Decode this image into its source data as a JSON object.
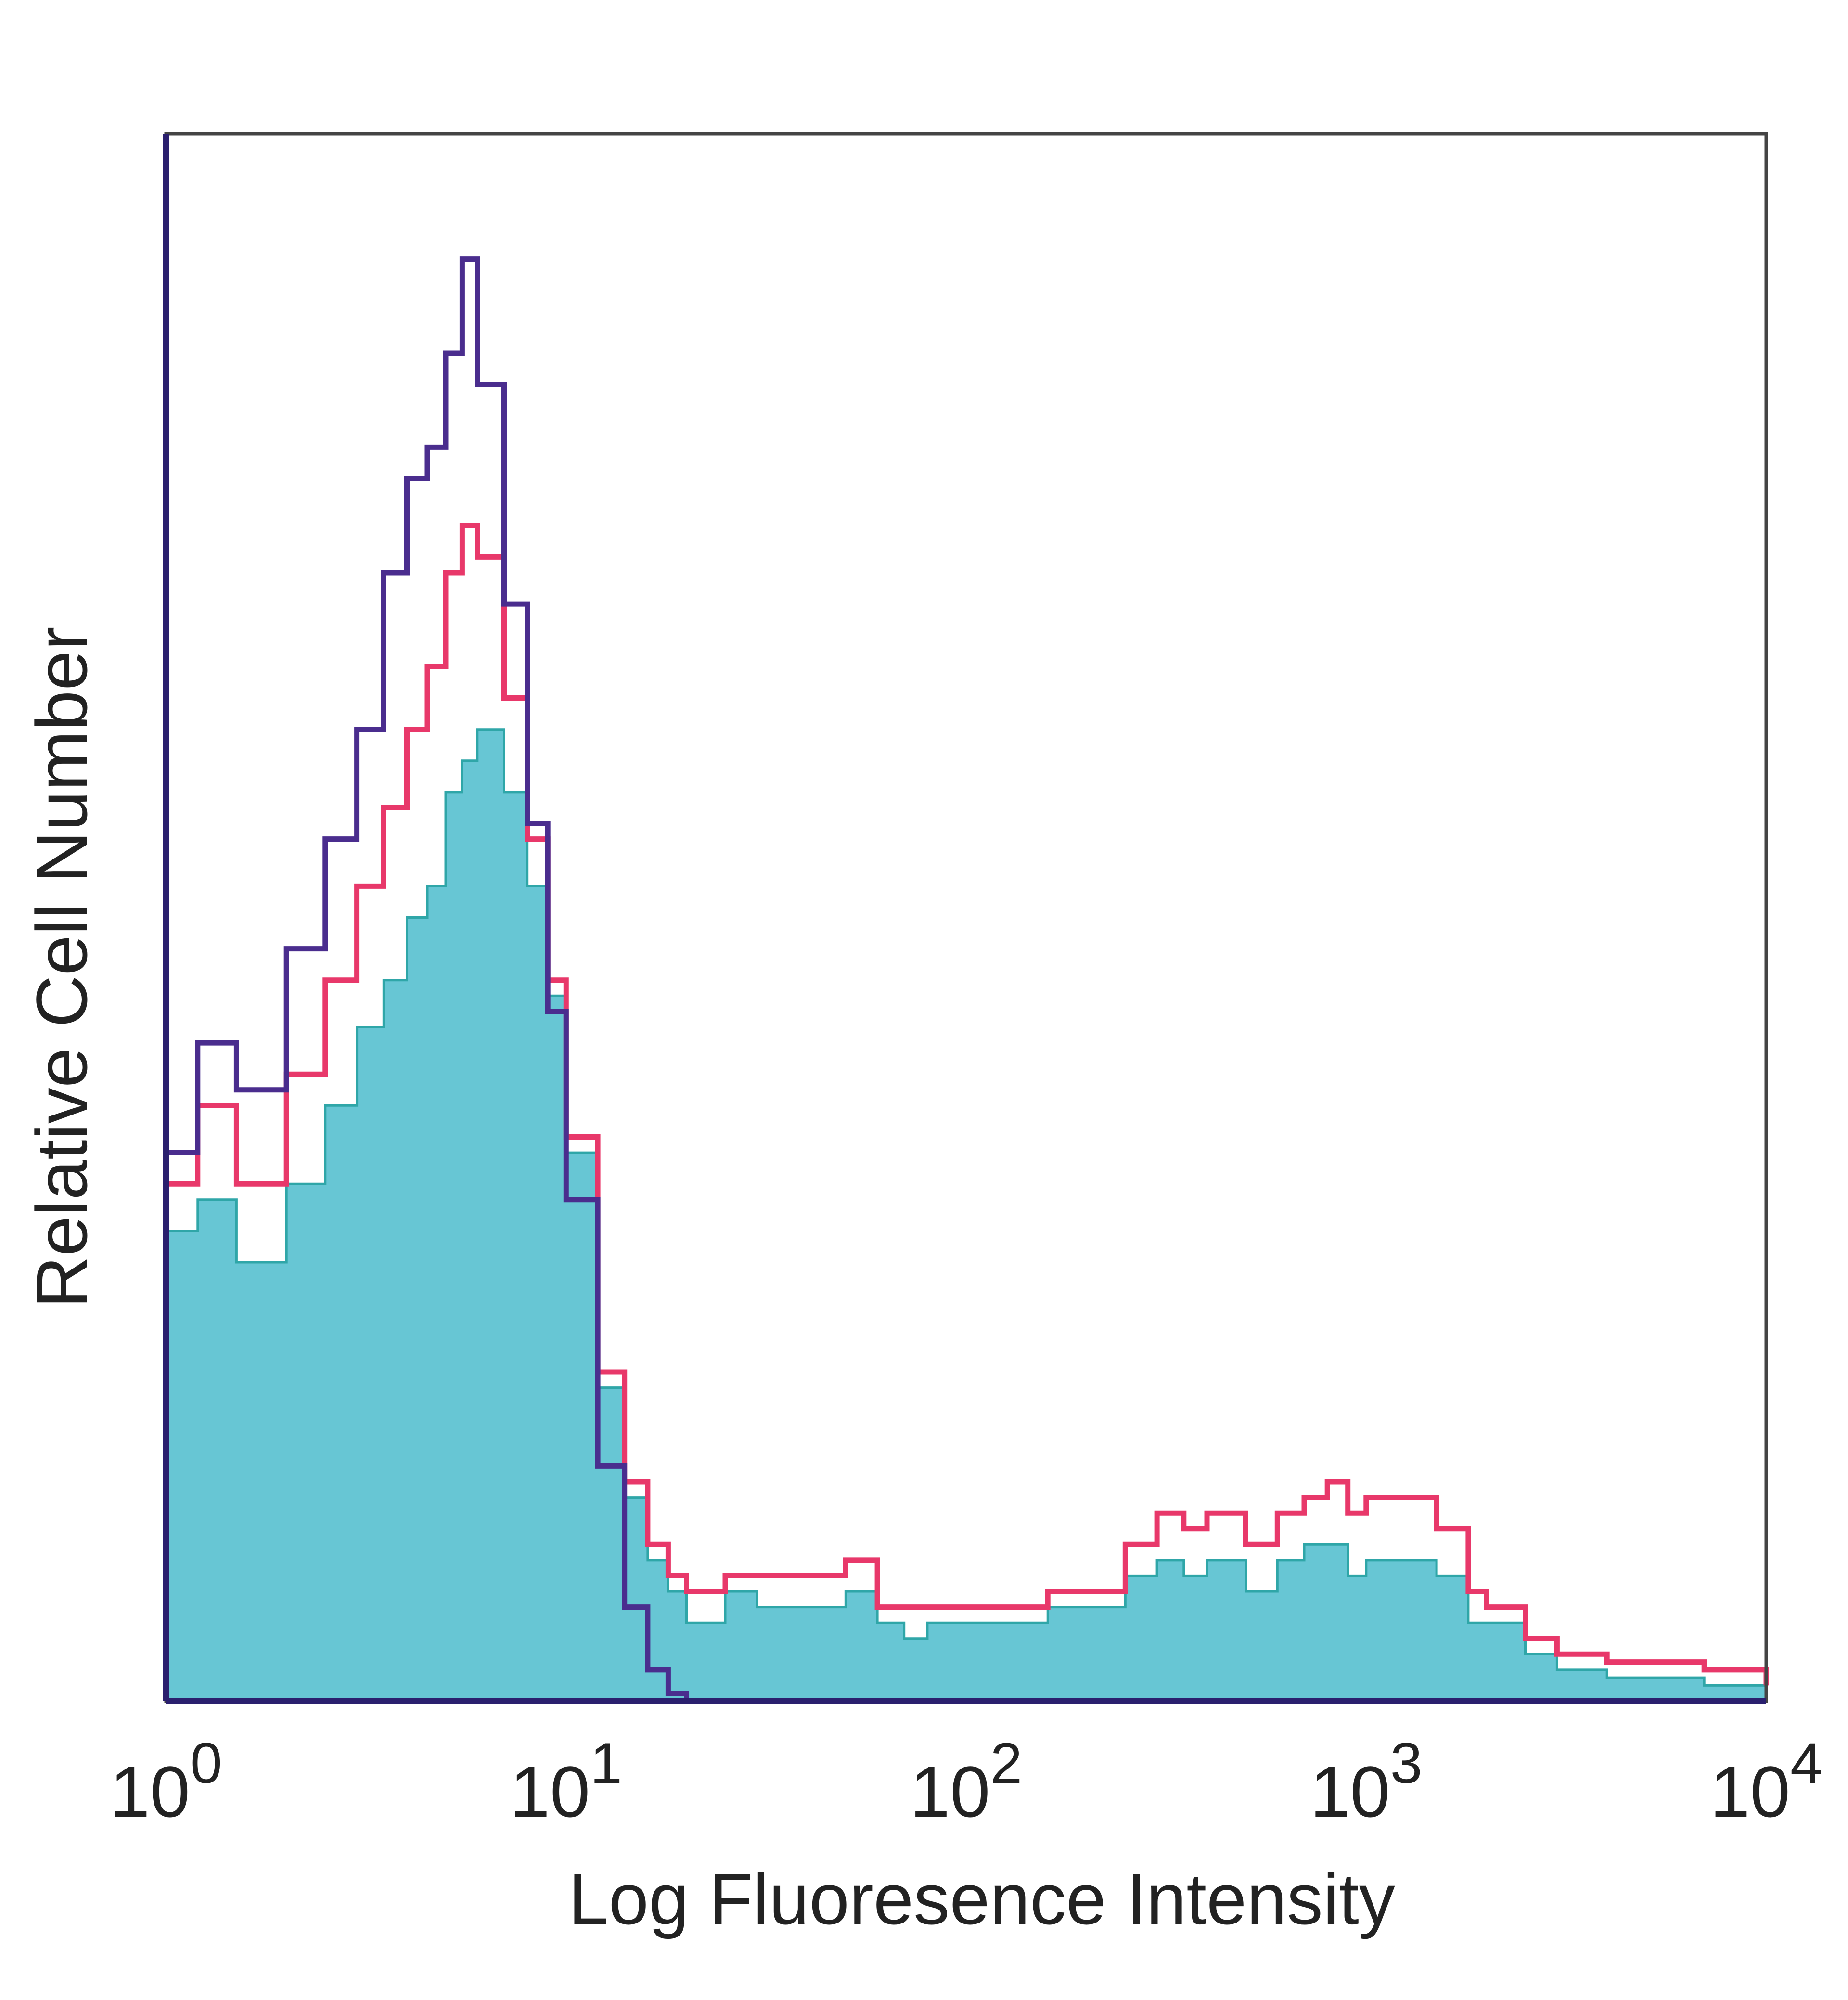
{
  "chart_data": {
    "type": "area",
    "title": "",
    "xlabel": "Log Fluoresence Intensity",
    "ylabel": "Relative Cell Number",
    "x_scale": "log",
    "xlim": [
      1,
      10000
    ],
    "ylim": [
      0,
      100
    ],
    "grid": false,
    "x_ticks": [
      {
        "value": 1,
        "base": "10",
        "exp": "0"
      },
      {
        "value": 10,
        "base": "10",
        "exp": "1"
      },
      {
        "value": 100,
        "base": "10",
        "exp": "2"
      },
      {
        "value": 1000,
        "base": "10",
        "exp": "3"
      },
      {
        "value": 10000,
        "base": "10",
        "exp": "4"
      }
    ],
    "colors": {
      "fill": "#67c6d4",
      "red": "#e8386a",
      "purple": "#4a2d8e",
      "frame": "#444444",
      "axis": "#2a1f6e"
    },
    "series": [
      {
        "style": "filled",
        "color": "#67c6d4",
        "x": [
          1,
          1.2,
          1.5,
          2,
          2.5,
          3,
          3.5,
          4,
          4.5,
          5,
          5.5,
          6,
          7,
          8,
          9,
          10,
          12,
          14,
          16,
          18,
          20,
          25,
          30,
          40,
          50,
          60,
          70,
          80,
          100,
          130,
          160,
          200,
          250,
          300,
          350,
          400,
          500,
          600,
          700,
          800,
          900,
          1000,
          1200,
          1500,
          1800,
          2000,
          2500,
          3000,
          4000,
          5000,
          7000,
          10000
        ],
        "y": [
          30,
          32,
          28,
          33,
          38,
          43,
          46,
          50,
          52,
          58,
          60,
          62,
          58,
          52,
          45,
          35,
          20,
          13,
          9,
          7,
          5,
          7,
          6,
          6,
          7,
          5,
          4,
          5,
          5,
          5,
          6,
          6,
          8,
          9,
          8,
          9,
          7,
          9,
          10,
          10,
          8,
          9,
          9,
          8,
          5,
          5,
          3,
          2,
          1.5,
          1.5,
          1,
          0.5
        ]
      },
      {
        "style": "line",
        "color": "#e8386a",
        "x": [
          1,
          1.2,
          1.5,
          2,
          2.5,
          3,
          3.5,
          4,
          4.5,
          5,
          5.5,
          6,
          7,
          8,
          9,
          10,
          12,
          14,
          16,
          18,
          20,
          25,
          30,
          40,
          50,
          60,
          70,
          80,
          100,
          130,
          160,
          200,
          250,
          300,
          350,
          400,
          500,
          600,
          700,
          800,
          900,
          1000,
          1200,
          1500,
          1800,
          2000,
          2500,
          3000,
          4000,
          5000,
          7000,
          10000
        ],
        "y": [
          33,
          38,
          33,
          40,
          46,
          52,
          57,
          62,
          66,
          72,
          75,
          73,
          64,
          55,
          46,
          36,
          21,
          14,
          10,
          8,
          7,
          8,
          8,
          8,
          9,
          6,
          6,
          6,
          6,
          6,
          7,
          7,
          10,
          12,
          11,
          12,
          10,
          12,
          13,
          14,
          12,
          13,
          13,
          11,
          7,
          6,
          4,
          3,
          2.5,
          2.5,
          2,
          1
        ]
      },
      {
        "style": "line",
        "color": "#4a2d8e",
        "x": [
          1,
          1.2,
          1.5,
          2,
          2.5,
          3,
          3.5,
          4,
          4.5,
          5,
          5.5,
          6,
          7,
          8,
          9,
          10,
          12,
          14,
          16,
          18,
          20
        ],
        "y": [
          35,
          42,
          39,
          48,
          55,
          62,
          72,
          78,
          80,
          86,
          92,
          84,
          70,
          56,
          44,
          32,
          15,
          6,
          2,
          0.5,
          0
        ]
      }
    ]
  }
}
